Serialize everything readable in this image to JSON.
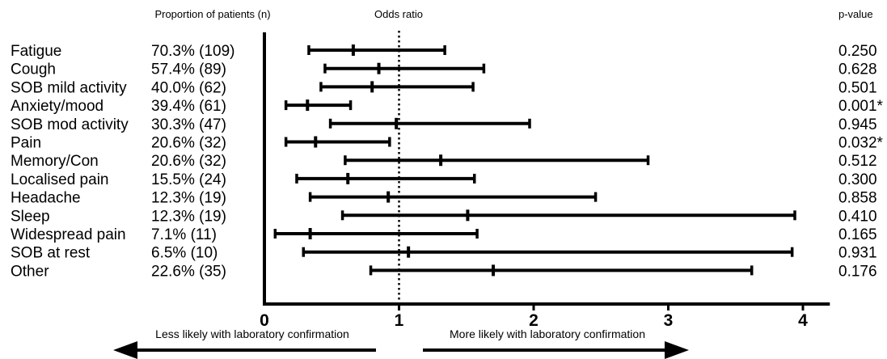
{
  "chart_data": {
    "type": "forest",
    "headers": {
      "proportion": "Proportion of patients (n)",
      "odds_ratio": "Odds ratio",
      "p_value": "p-value"
    },
    "rows": [
      {
        "label": "Fatigue",
        "proportion": "70.3% (109)",
        "or": 0.66,
        "lo": 0.33,
        "hi": 1.34,
        "p": "0.250"
      },
      {
        "label": "Cough",
        "proportion": "57.4% (89)",
        "or": 0.85,
        "lo": 0.45,
        "hi": 1.63,
        "p": "0.628"
      },
      {
        "label": "SOB mild activity",
        "proportion": "40.0% (62)",
        "or": 0.8,
        "lo": 0.42,
        "hi": 1.55,
        "p": "0.501"
      },
      {
        "label": "Anxiety/mood",
        "proportion": "39.4% (61)",
        "or": 0.32,
        "lo": 0.16,
        "hi": 0.64,
        "p": "0.001*"
      },
      {
        "label": "SOB mod activity",
        "proportion": "30.3% (47)",
        "or": 0.98,
        "lo": 0.49,
        "hi": 1.97,
        "p": "0.945"
      },
      {
        "label": "Pain",
        "proportion": "20.6% (32)",
        "or": 0.38,
        "lo": 0.16,
        "hi": 0.93,
        "p": "0.032*"
      },
      {
        "label": "Memory/Con",
        "proportion": "20.6% (32)",
        "or": 1.31,
        "lo": 0.6,
        "hi": 2.85,
        "p": "0.512"
      },
      {
        "label": "Localised pain",
        "proportion": "15.5% (24)",
        "or": 0.62,
        "lo": 0.24,
        "hi": 1.56,
        "p": "0.300"
      },
      {
        "label": "Headache",
        "proportion": "12.3% (19)",
        "or": 0.92,
        "lo": 0.34,
        "hi": 2.46,
        "p": "0.858"
      },
      {
        "label": "Sleep",
        "proportion": "12.3% (19)",
        "or": 1.51,
        "lo": 0.58,
        "hi": 3.94,
        "p": "0.410"
      },
      {
        "label": "Widespread pain",
        "proportion": "7.1% (11)",
        "or": 0.34,
        "lo": 0.08,
        "hi": 1.58,
        "p": "0.165"
      },
      {
        "label": "SOB at rest",
        "proportion": "6.5% (10)",
        "or": 1.07,
        "lo": 0.29,
        "hi": 3.92,
        "p": "0.931"
      },
      {
        "label": "Other",
        "proportion": "22.6% (35)",
        "or": 1.7,
        "lo": 0.79,
        "hi": 3.62,
        "p": "0.176"
      }
    ],
    "x_ticks": [
      "0",
      "1",
      "2",
      "3",
      "4"
    ],
    "xlim": [
      0,
      4.2
    ],
    "reference_line": 1,
    "annotations": {
      "left": "Less likely with laboratory confirmation",
      "right": "More likely with laboratory confirmation"
    }
  }
}
